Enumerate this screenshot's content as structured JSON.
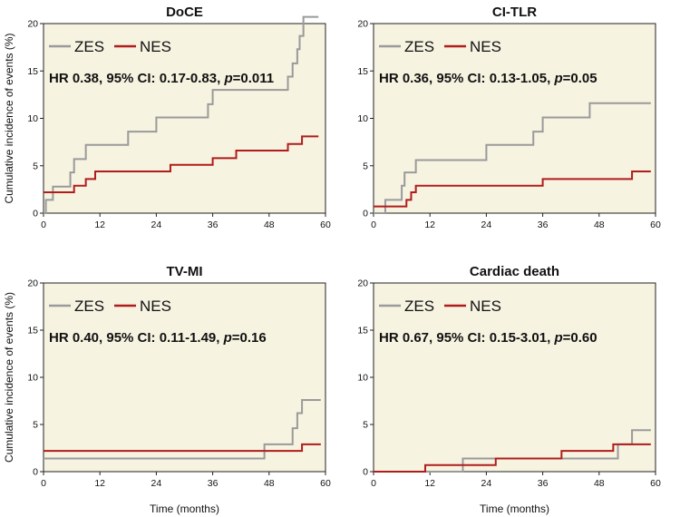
{
  "chart_data": [
    {
      "type": "line",
      "title": "DoCE",
      "ylabel": "Cumulative incidence of events (%)",
      "xlabel": "",
      "xlim": [
        0,
        60
      ],
      "ylim": [
        0,
        20
      ],
      "xticks": [
        "0",
        "12",
        "24",
        "36",
        "48",
        "60"
      ],
      "yticks": [
        "0",
        "5",
        "10",
        "15",
        "20"
      ],
      "legend": "top-left",
      "annotation": {
        "pre": "HR 0.38, 95% CI: 0.17-0.83, ",
        "p": "p",
        "post": "=0.011"
      },
      "series": [
        {
          "name": "ZES",
          "color": "#9a9a9a",
          "x": [
            0,
            0.5,
            2,
            5,
            5.7,
            6.5,
            9,
            18,
            24,
            34,
            35,
            36,
            51,
            52,
            53,
            54,
            54.5,
            55.3,
            58.5
          ],
          "y": [
            0,
            1.4,
            2.8,
            2.8,
            4.3,
            5.7,
            7.2,
            8.6,
            10.1,
            10.1,
            11.5,
            13.0,
            13.0,
            14.4,
            15.8,
            17.3,
            18.7,
            20.7,
            20.7
          ]
        },
        {
          "name": "NES",
          "color": "#b01c1c",
          "x": [
            0,
            6.5,
            9,
            11,
            27,
            36,
            41,
            52,
            55,
            58.5
          ],
          "y": [
            2.2,
            2.9,
            3.6,
            4.4,
            5.1,
            5.8,
            6.6,
            7.3,
            8.1,
            8.1
          ]
        }
      ]
    },
    {
      "type": "line",
      "title": "CI-TLR",
      "ylabel": "",
      "xlabel": "",
      "xlim": [
        0,
        60
      ],
      "ylim": [
        0,
        20
      ],
      "xticks": [
        "0",
        "12",
        "24",
        "36",
        "48",
        "60"
      ],
      "yticks": [
        "0",
        "5",
        "10",
        "15",
        "20"
      ],
      "legend": "top-left",
      "annotation": {
        "pre": "HR 0.36, 95% CI: 0.13-1.05, ",
        "p": "p",
        "post": "=0.05"
      },
      "series": [
        {
          "name": "ZES",
          "color": "#9a9a9a",
          "x": [
            0,
            2.5,
            6,
            6.6,
            9,
            24,
            34,
            36,
            46,
            59
          ],
          "y": [
            0,
            1.4,
            2.9,
            4.3,
            5.6,
            7.2,
            8.6,
            10.1,
            11.6,
            11.6
          ]
        },
        {
          "name": "NES",
          "color": "#b01c1c",
          "x": [
            0,
            7,
            8,
            9,
            36,
            55,
            59
          ],
          "y": [
            0.7,
            1.4,
            2.2,
            2.9,
            3.6,
            4.4,
            4.4
          ]
        }
      ]
    },
    {
      "type": "line",
      "title": "TV-MI",
      "ylabel": "Cumulative incidence of events (%)",
      "xlabel": "Time (months)",
      "xlim": [
        0,
        60
      ],
      "ylim": [
        0,
        20
      ],
      "xticks": [
        "0",
        "12",
        "24",
        "36",
        "48",
        "60"
      ],
      "yticks": [
        "0",
        "5",
        "10",
        "15",
        "20"
      ],
      "legend": "top-left",
      "annotation": {
        "pre": "HR 0.40, 95% CI: 0.11-1.49, ",
        "p": "p",
        "post": "=0.16"
      },
      "series": [
        {
          "name": "ZES",
          "color": "#9a9a9a",
          "x": [
            0,
            47,
            53,
            54,
            55,
            59
          ],
          "y": [
            1.4,
            2.9,
            4.6,
            6.2,
            7.6,
            7.6
          ]
        },
        {
          "name": "NES",
          "color": "#b01c1c",
          "x": [
            0,
            55,
            59
          ],
          "y": [
            2.2,
            2.9,
            2.9
          ]
        }
      ]
    },
    {
      "type": "line",
      "title": "Cardiac death",
      "ylabel": "",
      "xlabel": "Time (months)",
      "xlim": [
        0,
        60
      ],
      "ylim": [
        0,
        20
      ],
      "xticks": [
        "0",
        "12",
        "24",
        "36",
        "48",
        "60"
      ],
      "yticks": [
        "0",
        "5",
        "10",
        "15",
        "20"
      ],
      "legend": "top-left",
      "annotation": {
        "pre": "HR 0.67, 95% CI: 0.15-3.01, ",
        "p": "p",
        "post": "=0.60"
      },
      "series": [
        {
          "name": "ZES",
          "color": "#9a9a9a",
          "x": [
            0,
            19,
            52,
            55,
            59
          ],
          "y": [
            0,
            1.4,
            2.9,
            4.4,
            4.4
          ]
        },
        {
          "name": "NES",
          "color": "#b01c1c",
          "x": [
            0,
            11,
            26,
            40,
            51,
            59
          ],
          "y": [
            0,
            0.7,
            1.4,
            2.2,
            2.9,
            2.9
          ]
        }
      ]
    }
  ]
}
